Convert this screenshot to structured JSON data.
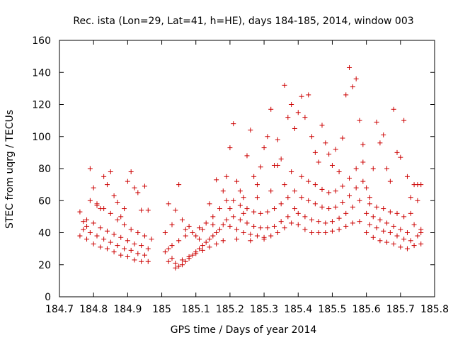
{
  "chart_data": {
    "type": "scatter",
    "title": "Rec. ista (Lon=29, Lat=41, h=HE), days 184-185, 2014, window 003",
    "xlabel": "GPS time / Days of year 2014",
    "ylabel": "STEC from uqrg / TECUs",
    "xlim": [
      184.7,
      185.8
    ],
    "ylim": [
      0,
      160
    ],
    "xticks": [
      "184.7",
      "184.8",
      "184.9",
      "185",
      "185.1",
      "185.2",
      "185.3",
      "185.4",
      "185.5",
      "185.6",
      "185.7",
      "185.8"
    ],
    "yticks": [
      "0",
      "20",
      "40",
      "60",
      "80",
      "100",
      "120",
      "140",
      "160"
    ],
    "marker": "plus",
    "color": "#cc0000",
    "grid": false,
    "legend": false,
    "series": [
      {
        "points": [
          [
            184.76,
            53
          ],
          [
            184.77,
            47
          ],
          [
            184.78,
            44
          ],
          [
            184.79,
            80
          ],
          [
            184.8,
            68
          ],
          [
            184.81,
            57
          ],
          [
            184.82,
            55
          ],
          [
            184.83,
            75
          ],
          [
            184.84,
            70
          ],
          [
            184.85,
            78
          ],
          [
            184.86,
            63
          ],
          [
            184.87,
            59
          ],
          [
            184.88,
            50
          ],
          [
            184.89,
            55
          ],
          [
            184.9,
            72
          ],
          [
            184.91,
            78
          ],
          [
            184.92,
            68
          ],
          [
            184.93,
            65
          ],
          [
            184.94,
            54
          ],
          [
            184.95,
            69
          ],
          [
            184.96,
            54
          ],
          [
            184.76,
            38
          ],
          [
            184.78,
            36
          ],
          [
            184.8,
            33
          ],
          [
            184.82,
            31
          ],
          [
            184.84,
            30
          ],
          [
            184.86,
            28
          ],
          [
            184.88,
            26
          ],
          [
            184.9,
            25
          ],
          [
            184.92,
            23
          ],
          [
            184.94,
            22
          ],
          [
            184.96,
            22
          ],
          [
            184.77,
            42
          ],
          [
            184.79,
            40
          ],
          [
            184.81,
            38
          ],
          [
            184.83,
            36
          ],
          [
            184.85,
            34
          ],
          [
            184.87,
            32
          ],
          [
            184.89,
            30
          ],
          [
            184.91,
            29
          ],
          [
            184.93,
            27
          ],
          [
            184.95,
            26
          ],
          [
            184.78,
            48
          ],
          [
            184.8,
            46
          ],
          [
            184.82,
            43
          ],
          [
            184.84,
            41
          ],
          [
            184.86,
            39
          ],
          [
            184.88,
            37
          ],
          [
            184.9,
            35
          ],
          [
            184.92,
            33
          ],
          [
            184.94,
            32
          ],
          [
            184.96,
            30
          ],
          [
            184.79,
            60
          ],
          [
            184.81,
            58
          ],
          [
            184.83,
            55
          ],
          [
            184.85,
            52
          ],
          [
            184.87,
            48
          ],
          [
            184.89,
            45
          ],
          [
            184.91,
            42
          ],
          [
            184.93,
            40
          ],
          [
            184.95,
            38
          ],
          [
            184.97,
            36
          ],
          [
            185.01,
            40
          ],
          [
            185.02,
            30
          ],
          [
            185.03,
            24
          ],
          [
            185.04,
            18
          ],
          [
            185.05,
            19
          ],
          [
            185.06,
            20
          ],
          [
            185.07,
            22
          ],
          [
            185.08,
            24
          ],
          [
            185.09,
            26
          ],
          [
            185.1,
            28
          ],
          [
            185.11,
            30
          ],
          [
            185.12,
            32
          ],
          [
            185.13,
            34
          ],
          [
            185.14,
            36
          ],
          [
            185.15,
            38
          ],
          [
            185.16,
            40
          ],
          [
            185.17,
            42
          ],
          [
            185.18,
            45
          ],
          [
            185.19,
            48
          ],
          [
            185.01,
            28
          ],
          [
            185.03,
            32
          ],
          [
            185.05,
            35
          ],
          [
            185.07,
            38
          ],
          [
            185.09,
            40
          ],
          [
            185.11,
            43
          ],
          [
            185.13,
            46
          ],
          [
            185.15,
            50
          ],
          [
            185.17,
            55
          ],
          [
            185.19,
            60
          ],
          [
            185.02,
            58
          ],
          [
            185.04,
            54
          ],
          [
            185.05,
            70
          ],
          [
            185.06,
            48
          ],
          [
            185.08,
            44
          ],
          [
            185.1,
            38
          ],
          [
            185.12,
            42
          ],
          [
            185.14,
            58
          ],
          [
            185.16,
            73
          ],
          [
            185.18,
            66
          ],
          [
            185.02,
            22
          ],
          [
            185.04,
            21
          ],
          [
            185.06,
            23
          ],
          [
            185.08,
            25
          ],
          [
            185.1,
            27
          ],
          [
            185.12,
            29
          ],
          [
            185.14,
            31
          ],
          [
            185.16,
            33
          ],
          [
            185.18,
            35
          ],
          [
            185.03,
            45
          ],
          [
            185.07,
            42
          ],
          [
            185.11,
            36
          ],
          [
            185.15,
            45
          ],
          [
            185.19,
            75
          ],
          [
            185.2,
            93
          ],
          [
            185.21,
            108
          ],
          [
            185.22,
            72
          ],
          [
            185.23,
            66
          ],
          [
            185.24,
            62
          ],
          [
            185.25,
            88
          ],
          [
            185.26,
            104
          ],
          [
            185.27,
            75
          ],
          [
            185.28,
            70
          ],
          [
            185.29,
            81
          ],
          [
            185.3,
            93
          ],
          [
            185.31,
            100
          ],
          [
            185.32,
            117
          ],
          [
            185.33,
            82
          ],
          [
            185.34,
            98
          ],
          [
            185.35,
            86
          ],
          [
            185.36,
            132
          ],
          [
            185.37,
            112
          ],
          [
            185.38,
            120
          ],
          [
            185.39,
            105
          ],
          [
            185.2,
            44
          ],
          [
            185.22,
            42
          ],
          [
            185.24,
            40
          ],
          [
            185.26,
            39
          ],
          [
            185.28,
            38
          ],
          [
            185.3,
            37
          ],
          [
            185.32,
            38
          ],
          [
            185.34,
            40
          ],
          [
            185.36,
            43
          ],
          [
            185.38,
            46
          ],
          [
            185.21,
            50
          ],
          [
            185.23,
            48
          ],
          [
            185.25,
            46
          ],
          [
            185.27,
            44
          ],
          [
            185.29,
            43
          ],
          [
            185.31,
            43
          ],
          [
            185.33,
            44
          ],
          [
            185.35,
            47
          ],
          [
            185.37,
            50
          ],
          [
            185.39,
            55
          ],
          [
            185.21,
            60
          ],
          [
            185.23,
            57
          ],
          [
            185.25,
            55
          ],
          [
            185.27,
            53
          ],
          [
            185.29,
            52
          ],
          [
            185.31,
            53
          ],
          [
            185.33,
            55
          ],
          [
            185.35,
            58
          ],
          [
            185.37,
            62
          ],
          [
            185.39,
            66
          ],
          [
            185.22,
            36
          ],
          [
            185.26,
            35
          ],
          [
            185.3,
            36
          ],
          [
            185.34,
            82
          ],
          [
            185.36,
            70
          ],
          [
            185.38,
            78
          ],
          [
            185.2,
            55
          ],
          [
            185.24,
            52
          ],
          [
            185.28,
            62
          ],
          [
            185.32,
            66
          ],
          [
            185.4,
            115
          ],
          [
            185.41,
            125
          ],
          [
            185.42,
            112
          ],
          [
            185.43,
            126
          ],
          [
            185.44,
            100
          ],
          [
            185.45,
            90
          ],
          [
            185.46,
            84
          ],
          [
            185.47,
            107
          ],
          [
            185.48,
            96
          ],
          [
            185.49,
            89
          ],
          [
            185.5,
            82
          ],
          [
            185.51,
            92
          ],
          [
            185.52,
            78
          ],
          [
            185.53,
            99
          ],
          [
            185.54,
            126
          ],
          [
            185.55,
            143
          ],
          [
            185.56,
            131
          ],
          [
            185.57,
            136
          ],
          [
            185.58,
            110
          ],
          [
            185.59,
            95
          ],
          [
            185.4,
            45
          ],
          [
            185.42,
            42
          ],
          [
            185.44,
            40
          ],
          [
            185.46,
            40
          ],
          [
            185.48,
            40
          ],
          [
            185.5,
            41
          ],
          [
            185.52,
            42
          ],
          [
            185.54,
            44
          ],
          [
            185.56,
            46
          ],
          [
            185.58,
            47
          ],
          [
            185.4,
            52
          ],
          [
            185.42,
            50
          ],
          [
            185.44,
            48
          ],
          [
            185.46,
            47
          ],
          [
            185.48,
            46
          ],
          [
            185.5,
            47
          ],
          [
            185.52,
            49
          ],
          [
            185.54,
            52
          ],
          [
            185.56,
            56
          ],
          [
            185.58,
            60
          ],
          [
            185.41,
            62
          ],
          [
            185.43,
            60
          ],
          [
            185.45,
            58
          ],
          [
            185.47,
            56
          ],
          [
            185.49,
            55
          ],
          [
            185.51,
            56
          ],
          [
            185.53,
            59
          ],
          [
            185.55,
            63
          ],
          [
            185.57,
            68
          ],
          [
            185.59,
            72
          ],
          [
            185.41,
            75
          ],
          [
            185.43,
            72
          ],
          [
            185.45,
            70
          ],
          [
            185.47,
            67
          ],
          [
            185.49,
            65
          ],
          [
            185.51,
            66
          ],
          [
            185.53,
            69
          ],
          [
            185.55,
            74
          ],
          [
            185.57,
            80
          ],
          [
            185.59,
            84
          ],
          [
            185.6,
            68
          ],
          [
            185.61,
            62
          ],
          [
            185.62,
            80
          ],
          [
            185.63,
            109
          ],
          [
            185.64,
            96
          ],
          [
            185.65,
            101
          ],
          [
            185.66,
            80
          ],
          [
            185.67,
            72
          ],
          [
            185.68,
            117
          ],
          [
            185.69,
            90
          ],
          [
            185.7,
            87
          ],
          [
            185.71,
            110
          ],
          [
            185.72,
            75
          ],
          [
            185.73,
            52
          ],
          [
            185.74,
            70
          ],
          [
            185.75,
            60
          ],
          [
            185.6,
            40
          ],
          [
            185.62,
            37
          ],
          [
            185.64,
            35
          ],
          [
            185.66,
            34
          ],
          [
            185.68,
            33
          ],
          [
            185.7,
            31
          ],
          [
            185.72,
            30
          ],
          [
            185.74,
            32
          ],
          [
            185.76,
            33
          ],
          [
            185.61,
            45
          ],
          [
            185.63,
            43
          ],
          [
            185.65,
            41
          ],
          [
            185.67,
            40
          ],
          [
            185.69,
            38
          ],
          [
            185.71,
            36
          ],
          [
            185.73,
            35
          ],
          [
            185.75,
            38
          ],
          [
            185.6,
            52
          ],
          [
            185.62,
            50
          ],
          [
            185.64,
            48
          ],
          [
            185.66,
            46
          ],
          [
            185.68,
            44
          ],
          [
            185.7,
            42
          ],
          [
            185.72,
            40
          ],
          [
            185.74,
            45
          ],
          [
            185.76,
            40
          ],
          [
            185.61,
            58
          ],
          [
            185.63,
            56
          ],
          [
            185.65,
            55
          ],
          [
            185.67,
            53
          ],
          [
            185.69,
            52
          ],
          [
            185.71,
            50
          ],
          [
            185.73,
            62
          ],
          [
            185.75,
            70
          ],
          [
            185.76,
            70
          ],
          [
            185.76,
            42
          ]
        ]
      }
    ]
  }
}
